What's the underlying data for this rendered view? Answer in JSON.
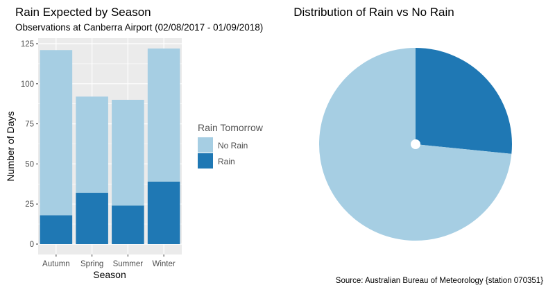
{
  "chart_data": [
    {
      "type": "bar",
      "stacked": true,
      "title": "Rain Expected by Season",
      "subtitle": "Observations at Canberra Airport (02/08/2017 - 01/09/2018)",
      "xlabel": "Season",
      "ylabel": "Number of Days",
      "categories": [
        "Autumn",
        "Spring",
        "Summer",
        "Winter"
      ],
      "series": [
        {
          "name": "Rain",
          "values": [
            18,
            32,
            24,
            39
          ]
        },
        {
          "name": "No Rain",
          "values": [
            103,
            60,
            66,
            83
          ]
        }
      ],
      "ylim": [
        0,
        127
      ],
      "yticks": [
        0,
        25,
        50,
        75,
        100,
        125
      ],
      "grid": true,
      "legend": {
        "title": "Rain Tomorrow",
        "position": "right",
        "entries": [
          "No Rain",
          "Rain"
        ]
      }
    },
    {
      "type": "pie",
      "title": "Distribution of Rain vs No Rain",
      "slices": [
        {
          "name": "Rain",
          "value": 113
        },
        {
          "name": "No Rain",
          "value": 312
        }
      ]
    }
  ],
  "colors": {
    "rain": "#1f78b4",
    "no_rain": "#a6cee3",
    "panel": "#ebebeb",
    "grid": "#ffffff"
  },
  "source": "Source: Australian Bureau of Meteorology {station 070351}"
}
